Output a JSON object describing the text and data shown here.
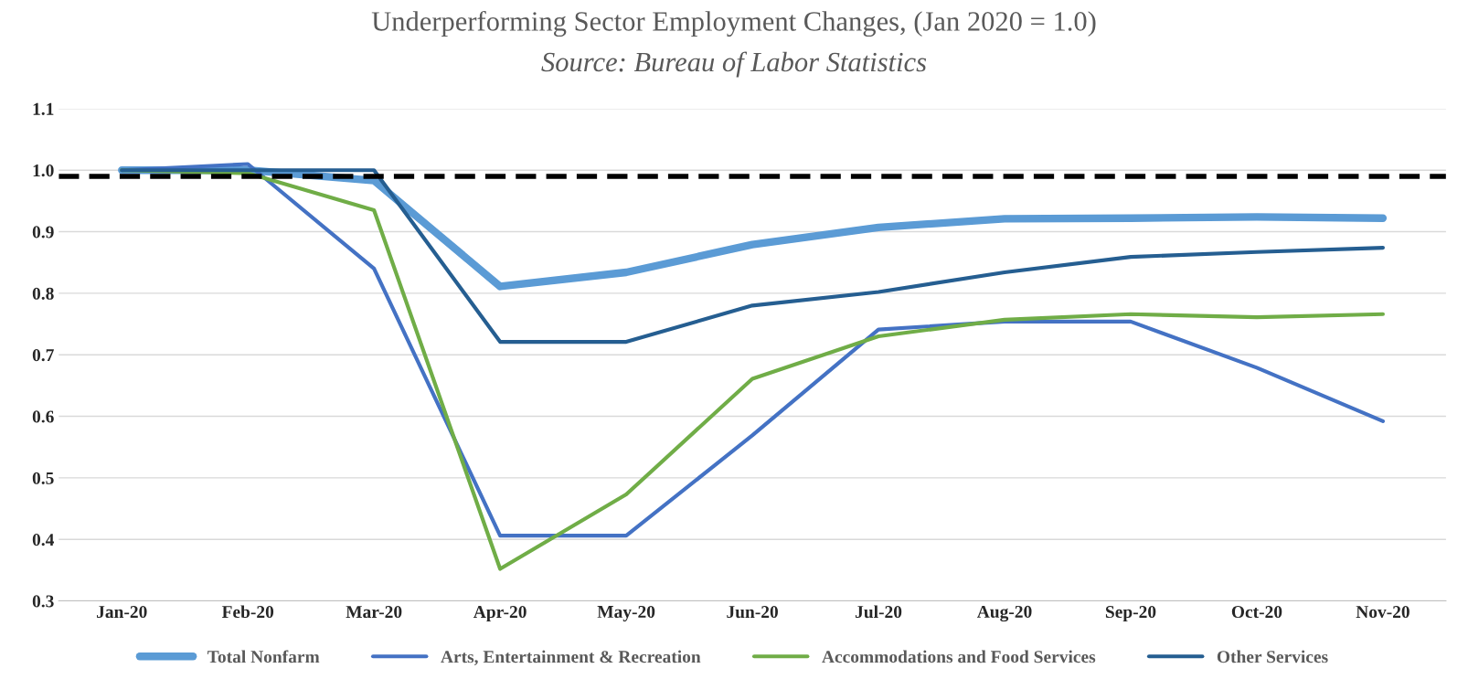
{
  "chart_data": {
    "type": "line",
    "title": "Underperforming Sector Employment Changes, (Jan 2020 = 1.0)",
    "subtitle": "Source: Bureau of Labor Statistics",
    "categories": [
      "Jan-20",
      "Feb-20",
      "Mar-20",
      "Apr-20",
      "May-20",
      "Jun-20",
      "Jul-20",
      "Aug-20",
      "Sep-20",
      "Oct-20",
      "Nov-20"
    ],
    "series": [
      {
        "name": "Total Nonfarm",
        "color": "#5b9bd5",
        "values": [
          1.0,
          1.0,
          0.983,
          0.811,
          0.834,
          0.879,
          0.907,
          0.921,
          0.922,
          0.924,
          0.922
        ]
      },
      {
        "name": "Arts, Entertainment & Recreation",
        "color": "#4472c4",
        "values": [
          1.0,
          1.01,
          0.84,
          0.406,
          0.406,
          0.569,
          0.741,
          0.754,
          0.754,
          0.679,
          0.592
        ]
      },
      {
        "name": "Accommodations and Food Services",
        "color": "#70ad47",
        "values": [
          1.0,
          0.995,
          0.935,
          0.352,
          0.473,
          0.661,
          0.73,
          0.757,
          0.766,
          0.761,
          0.766
        ]
      },
      {
        "name": "Other Services",
        "color": "#255e91",
        "values": [
          1.0,
          1.0,
          1.0,
          0.721,
          0.721,
          0.78,
          0.802,
          0.834,
          0.859,
          0.867,
          0.874
        ]
      }
    ],
    "ylim": [
      0.3,
      1.1
    ],
    "yticks": [
      0.3,
      0.4,
      0.5,
      0.6,
      0.7,
      0.8,
      0.9,
      {
        "value": 1,
        "label": "1.0"
      },
      1.1
    ],
    "ref_lines": [
      {
        "axis": "y",
        "value": 0.99,
        "color": "#000000",
        "line_style": "dashed"
      }
    ],
    "grid": "y",
    "legend": "bottom",
    "marker": "none",
    "line_style": "solid"
  }
}
